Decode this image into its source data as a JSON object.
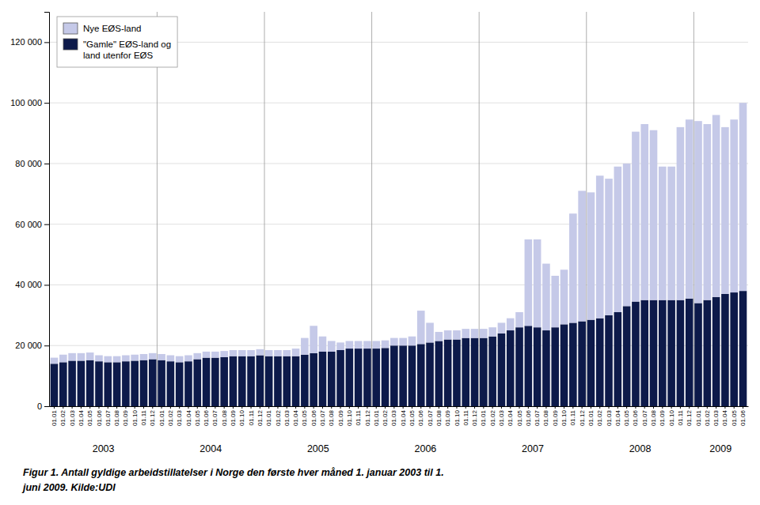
{
  "chart_data": {
    "type": "bar",
    "stacked": true,
    "grid": true,
    "legend": "upper left",
    "categories": [
      "01.01",
      "01.02",
      "01.03",
      "01.04",
      "01.05",
      "01.06",
      "01.07",
      "01.08",
      "01.09",
      "01.10",
      "01.11",
      "01.12",
      "01.01",
      "01.02",
      "01.03",
      "01.04",
      "01.05",
      "01.06",
      "01.07",
      "01.08",
      "01.09",
      "01.10",
      "01.11",
      "01.12",
      "01.01",
      "01.02",
      "01.03",
      "01.04",
      "01.05",
      "01.06",
      "01.07",
      "01.08",
      "01.09",
      "01.10",
      "01.11",
      "01.12",
      "01.01",
      "01.02",
      "01.03",
      "01.04",
      "01.05",
      "01.06",
      "01.07",
      "01.08",
      "01.09",
      "01.10",
      "01.11",
      "01.12",
      "01.01",
      "01.02",
      "01.03",
      "01.04",
      "01.05",
      "01.06",
      "01.07",
      "01.08",
      "01.09",
      "01.10",
      "01.11",
      "01.12",
      "01.01",
      "01.02",
      "01.03",
      "01.04",
      "01.05",
      "01.06",
      "01.07",
      "01.08",
      "01.09",
      "01.10",
      "01.11",
      "01.12",
      "01.01",
      "01.02",
      "01.03",
      "01.04",
      "01.05",
      "01.06"
    ],
    "series": [
      {
        "name": "\"Gamle\" EØS-land og\nland utenfor EØS",
        "color": "#0d1a4a",
        "values": [
          14000,
          14500,
          15000,
          15000,
          15200,
          14800,
          14500,
          14500,
          14800,
          15000,
          15200,
          15500,
          15200,
          14800,
          14500,
          14800,
          15500,
          16000,
          16000,
          16200,
          16500,
          16500,
          16500,
          16800,
          16500,
          16500,
          16500,
          16500,
          17000,
          17500,
          18000,
          18000,
          18500,
          19000,
          19000,
          19000,
          19000,
          19200,
          20000,
          20000,
          20000,
          20500,
          21000,
          21500,
          22000,
          22000,
          22500,
          22500,
          22500,
          23000,
          24000,
          25000,
          26000,
          26500,
          26000,
          25000,
          26000,
          27000,
          27500,
          28000,
          28500,
          29000,
          30000,
          31000,
          33000,
          34500,
          35000,
          35000,
          35000,
          35000,
          35000,
          35500,
          34000,
          35000,
          36000,
          37000,
          37500,
          38000
        ]
      },
      {
        "name": "Nye EØS-land",
        "color": "#c5c9e8",
        "values": [
          2000,
          2500,
          2500,
          2500,
          2500,
          2000,
          2000,
          2000,
          2000,
          2000,
          2000,
          2000,
          2000,
          2000,
          2000,
          2000,
          2000,
          2000,
          2000,
          2000,
          2000,
          2000,
          2000,
          2000,
          2000,
          2000,
          2000,
          2500,
          5500,
          9000,
          5000,
          3500,
          2500,
          2500,
          2500,
          2500,
          2500,
          2500,
          2500,
          2500,
          3000,
          11000,
          6500,
          3000,
          3000,
          3000,
          3000,
          3000,
          3000,
          3000,
          3500,
          4000,
          5000,
          28500,
          29000,
          22000,
          17000,
          18000,
          36000,
          43000,
          42000,
          47000,
          45000,
          48000,
          47000,
          56000,
          58000,
          56000,
          44000,
          44000,
          57000,
          59000,
          60000,
          58000,
          60000,
          55000,
          57000,
          62000
        ]
      }
    ],
    "ylim": [
      0,
      130000
    ],
    "yticks": [
      0,
      {
        "value": 20000,
        "label": "20 000"
      },
      {
        "value": 40000,
        "label": "40 000"
      },
      {
        "value": 60000,
        "label": "60 000"
      },
      {
        "value": 80000,
        "label": "80 000"
      },
      {
        "value": 100000,
        "label": "100 000"
      },
      {
        "value": 120000,
        "label": "120 000"
      }
    ],
    "annotations": [
      "2003",
      "2004",
      "2005",
      "2006",
      "2007",
      "2008",
      "2009"
    ],
    "caption": [
      "Figur 1. Antall gyldige arbeidstillatelser i Norge den første hver måned 1. januar 2003 til 1.",
      "juni 2009. Kilde:UDI"
    ]
  }
}
